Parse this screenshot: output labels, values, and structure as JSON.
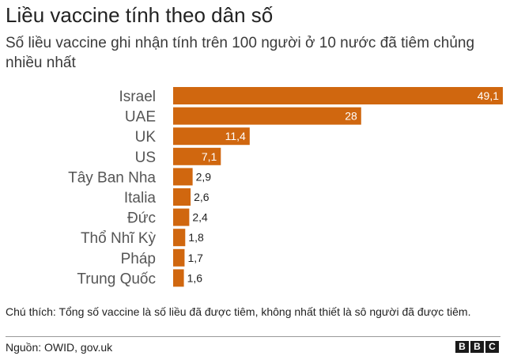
{
  "header": {
    "title": "Liều vaccine tính theo dân số",
    "subtitle": "Số liều vaccine ghi nhận tính trên 100 người ở 10 nước đã tiêm chủng nhiều nhất"
  },
  "footer": {
    "note": "Chú thích: Tổng số vaccine là số liều đã được tiêm, không nhất thiết là sô người đã được tiêm.",
    "source": "Nguồn: OWID, gov.uk",
    "logo_letters": [
      "B",
      "B",
      "C"
    ]
  },
  "colors": {
    "bar": "#d0670f",
    "label_inside": "#ffffff",
    "label_outside": "#222222",
    "category": "#555555"
  },
  "chart_data": {
    "type": "bar",
    "orientation": "horizontal",
    "categories": [
      "Israel",
      "UAE",
      "UK",
      "US",
      "Tây Ban Nha",
      "Italia",
      "Đức",
      "Thổ Nhĩ Kỳ",
      "Pháp",
      "Trung Quốc"
    ],
    "values": [
      49.1,
      28,
      11.4,
      7.1,
      2.9,
      2.6,
      2.4,
      1.8,
      1.7,
      1.6
    ],
    "value_labels": [
      "49,1",
      "28",
      "11,4",
      "7,1",
      "2,9",
      "2,6",
      "2,4",
      "1,8",
      "1,7",
      "1,6"
    ],
    "title": "Liều vaccine tính theo dân số",
    "subtitle": "Số liều vaccine ghi nhận tính trên 100 người ở 10 nước đã tiêm chủng nhiều nhất",
    "xlabel": "",
    "ylabel": "",
    "grid": false,
    "legend": "none"
  }
}
